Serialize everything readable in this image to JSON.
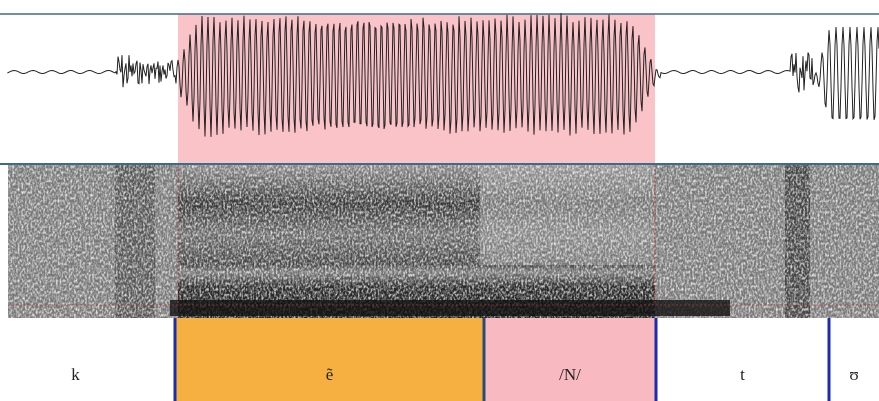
{
  "tier": {
    "segments": [
      "k",
      "ẽ",
      "/N/",
      "t",
      "ʊ"
    ]
  }
}
